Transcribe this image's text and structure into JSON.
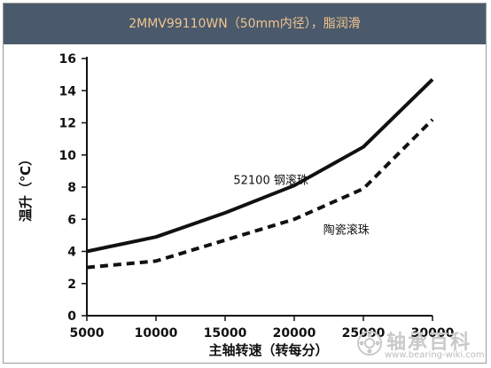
{
  "chart_data": {
    "type": "line",
    "title": "2MMV99110WN（50mm内径），脂润滑",
    "xlabel": "主轴转速（转每分）",
    "ylabel": "温升（℃）",
    "xlim": [
      5000,
      30000
    ],
    "ylim": [
      0,
      16
    ],
    "xticks": [
      5000,
      10000,
      15000,
      20000,
      25000,
      30000
    ],
    "yticks": [
      0,
      2,
      4,
      6,
      8,
      10,
      12,
      14,
      16
    ],
    "grid": false,
    "series": [
      {
        "name": "52100 钢滚珠",
        "style": "solid",
        "color": "#111111",
        "x": [
          5000,
          10000,
          15000,
          20000,
          25000,
          30000
        ],
        "y": [
          4.0,
          4.9,
          6.4,
          8.1,
          10.5,
          14.7
        ]
      },
      {
        "name": "陶瓷滚珠",
        "style": "dashed",
        "color": "#111111",
        "x": [
          5000,
          10000,
          15000,
          20000,
          25000,
          30000
        ],
        "y": [
          3.0,
          3.4,
          4.7,
          6.0,
          7.9,
          12.2
        ]
      }
    ]
  },
  "watermark": {
    "text": "轴承百科",
    "url": "www.bearing-wiki.com"
  }
}
